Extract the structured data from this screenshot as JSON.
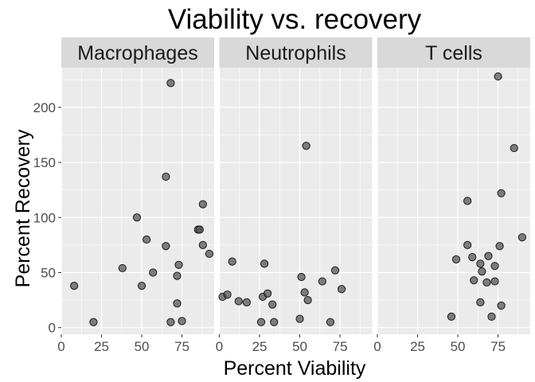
{
  "chart_data": {
    "type": "scatter",
    "title": "Viability vs. recovery",
    "xlabel": "Percent Viability",
    "ylabel": "Percent Recovery",
    "xlim": [
      0,
      95
    ],
    "ylim": [
      -6,
      236
    ],
    "x_ticks": [
      0,
      25,
      50,
      75
    ],
    "y_ticks": [
      0,
      50,
      100,
      150,
      200
    ],
    "x_tick_labels": [
      "0",
      "25",
      "50",
      "75"
    ],
    "y_tick_labels": [
      "0",
      "50",
      "100",
      "150",
      "200"
    ],
    "grid": true,
    "legend": "none",
    "colors": {
      "panel_background": "#ebebeb",
      "strip_background": "#d9d9d9",
      "grid_major": "#ffffff",
      "point_fill": "#4d4d4d",
      "point_stroke": "#1a1a1a"
    },
    "facets": [
      {
        "label": "Macrophages",
        "points": [
          {
            "x": 8,
            "y": 38
          },
          {
            "x": 20,
            "y": 5
          },
          {
            "x": 38,
            "y": 54
          },
          {
            "x": 47,
            "y": 100
          },
          {
            "x": 50,
            "y": 38
          },
          {
            "x": 53,
            "y": 80
          },
          {
            "x": 57,
            "y": 50
          },
          {
            "x": 65,
            "y": 137
          },
          {
            "x": 65,
            "y": 74
          },
          {
            "x": 68,
            "y": 222
          },
          {
            "x": 68,
            "y": 5
          },
          {
            "x": 72,
            "y": 47
          },
          {
            "x": 72,
            "y": 22
          },
          {
            "x": 73,
            "y": 57
          },
          {
            "x": 75,
            "y": 6
          },
          {
            "x": 85,
            "y": 89
          },
          {
            "x": 86,
            "y": 89
          },
          {
            "x": 88,
            "y": 112
          },
          {
            "x": 88,
            "y": 75
          },
          {
            "x": 92,
            "y": 67
          }
        ]
      },
      {
        "label": "Neutrophils",
        "points": [
          {
            "x": 2,
            "y": 28
          },
          {
            "x": 5,
            "y": 30
          },
          {
            "x": 8,
            "y": 60
          },
          {
            "x": 12,
            "y": 24
          },
          {
            "x": 17,
            "y": 23
          },
          {
            "x": 26,
            "y": 5
          },
          {
            "x": 27,
            "y": 28
          },
          {
            "x": 28,
            "y": 58
          },
          {
            "x": 30,
            "y": 31
          },
          {
            "x": 33,
            "y": 21
          },
          {
            "x": 34,
            "y": 5
          },
          {
            "x": 50,
            "y": 8
          },
          {
            "x": 51,
            "y": 46
          },
          {
            "x": 53,
            "y": 32
          },
          {
            "x": 54,
            "y": 165
          },
          {
            "x": 55,
            "y": 25
          },
          {
            "x": 64,
            "y": 42
          },
          {
            "x": 69,
            "y": 5
          },
          {
            "x": 72,
            "y": 52
          },
          {
            "x": 76,
            "y": 35
          }
        ]
      },
      {
        "label": "T cells",
        "points": [
          {
            "x": 46,
            "y": 10
          },
          {
            "x": 49,
            "y": 62
          },
          {
            "x": 56,
            "y": 115
          },
          {
            "x": 56,
            "y": 75
          },
          {
            "x": 59,
            "y": 64
          },
          {
            "x": 60,
            "y": 43
          },
          {
            "x": 64,
            "y": 58
          },
          {
            "x": 64,
            "y": 23
          },
          {
            "x": 65,
            "y": 51
          },
          {
            "x": 68,
            "y": 41
          },
          {
            "x": 69,
            "y": 65
          },
          {
            "x": 71,
            "y": 10
          },
          {
            "x": 73,
            "y": 56
          },
          {
            "x": 73,
            "y": 42
          },
          {
            "x": 75,
            "y": 228
          },
          {
            "x": 76,
            "y": 74
          },
          {
            "x": 77,
            "y": 20
          },
          {
            "x": 77,
            "y": 122
          },
          {
            "x": 85,
            "y": 163
          },
          {
            "x": 90,
            "y": 82
          }
        ]
      }
    ]
  }
}
